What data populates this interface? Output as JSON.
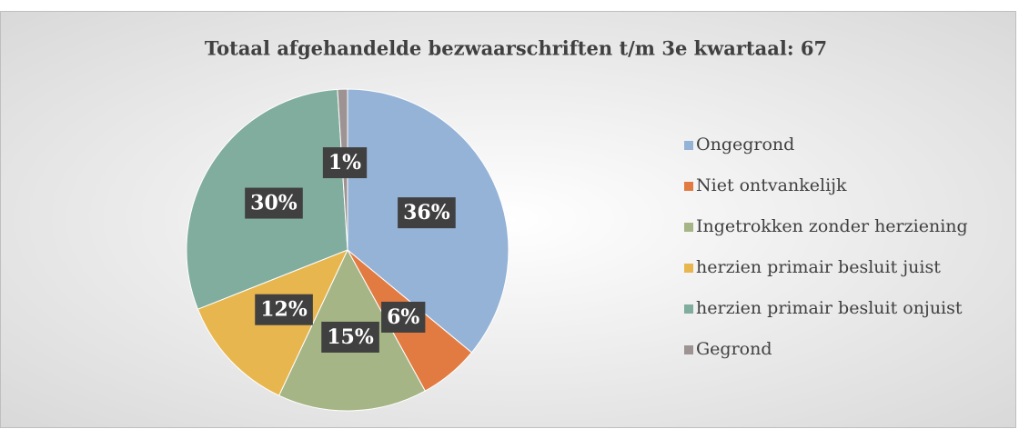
{
  "chart_data": {
    "type": "pie",
    "title": "Totaal afgehandelde bezwaarschriften t/m 3e kwartaal: 67",
    "categories": [
      "Ongegrond",
      "Niet ontvankelijk",
      "Ingetrokken zonder herziening",
      "herzien primair besluit juist",
      "herzien primair besluit onjuist",
      "Gegrond"
    ],
    "values": [
      36,
      6,
      15,
      12,
      30,
      1
    ],
    "value_labels": [
      "36%",
      "6%",
      "15%",
      "12%",
      "30%",
      "1%"
    ],
    "colors": [
      "#95b3d7",
      "#e27b41",
      "#a6b585",
      "#e8b64e",
      "#80ad9d",
      "#9d9393"
    ],
    "legend": "right"
  }
}
